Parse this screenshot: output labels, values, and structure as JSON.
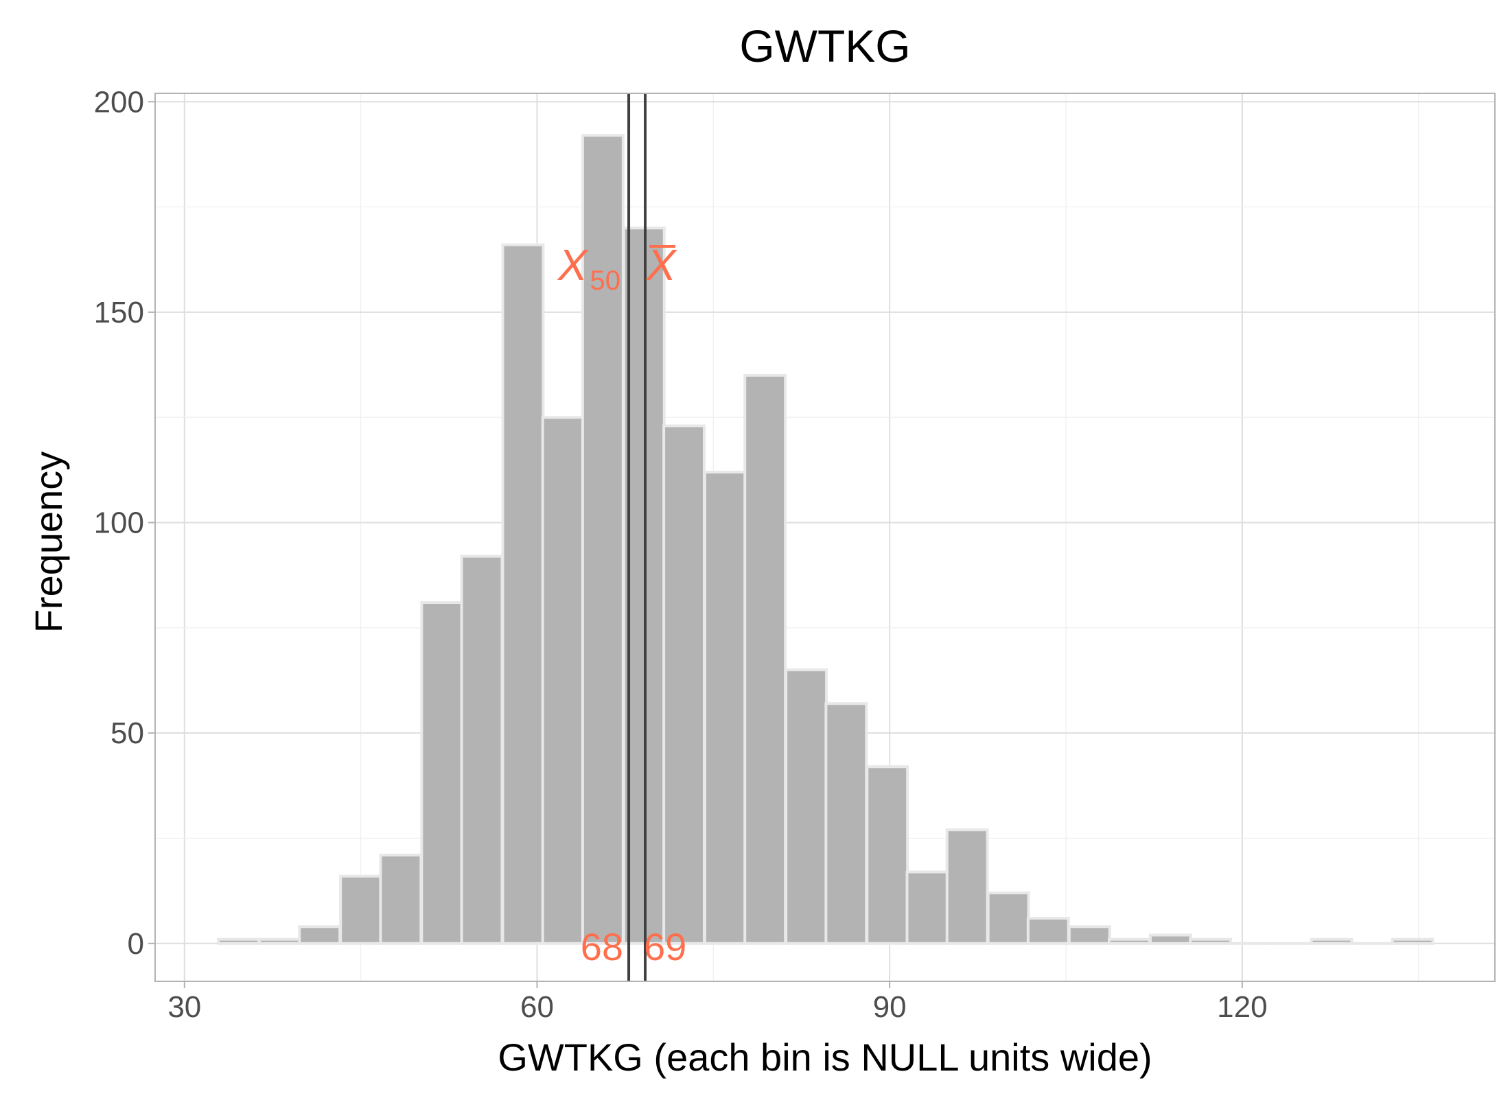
{
  "chart_data": {
    "type": "bar",
    "title": "GWTKG",
    "xlabel": "GWTKG (each bin is NULL units wide)",
    "ylabel": "Frequency",
    "xlim": [
      27.5,
      141.5
    ],
    "ylim": [
      -9,
      202
    ],
    "x_ticks": [
      30,
      60,
      90,
      120
    ],
    "y_ticks": [
      0,
      50,
      100,
      150,
      200
    ],
    "bin_width": 3.44,
    "bins": [
      {
        "x": 34.6,
        "count": 1
      },
      {
        "x": 38.1,
        "count": 1
      },
      {
        "x": 41.5,
        "count": 4
      },
      {
        "x": 45.0,
        "count": 16
      },
      {
        "x": 48.4,
        "count": 21
      },
      {
        "x": 51.9,
        "count": 81
      },
      {
        "x": 55.3,
        "count": 92
      },
      {
        "x": 58.8,
        "count": 166
      },
      {
        "x": 62.2,
        "count": 125
      },
      {
        "x": 65.6,
        "count": 192
      },
      {
        "x": 69.1,
        "count": 170
      },
      {
        "x": 72.5,
        "count": 123
      },
      {
        "x": 76.0,
        "count": 112
      },
      {
        "x": 79.4,
        "count": 135
      },
      {
        "x": 82.9,
        "count": 65
      },
      {
        "x": 86.3,
        "count": 57
      },
      {
        "x": 89.8,
        "count": 42
      },
      {
        "x": 93.2,
        "count": 17
      },
      {
        "x": 96.6,
        "count": 27
      },
      {
        "x": 100.1,
        "count": 12
      },
      {
        "x": 103.5,
        "count": 6
      },
      {
        "x": 107.0,
        "count": 4
      },
      {
        "x": 110.4,
        "count": 1
      },
      {
        "x": 113.9,
        "count": 2
      },
      {
        "x": 117.3,
        "count": 1
      },
      {
        "x": 120.8,
        "count": 0
      },
      {
        "x": 124.2,
        "count": 0
      },
      {
        "x": 127.6,
        "count": 1
      },
      {
        "x": 131.1,
        "count": 0
      },
      {
        "x": 134.5,
        "count": 1
      }
    ],
    "reference_lines": [
      {
        "x": 67.8,
        "symbol": "X",
        "subscript": "50",
        "value_label": "68"
      },
      {
        "x": 69.2,
        "symbol": "X",
        "overline": true,
        "value_label": "69"
      }
    ],
    "bar_fill": "#b3b3b3",
    "bar_outline": "#e8e8e8",
    "annotation_color": "#ff6f4d",
    "line_color": "#404040",
    "grid": true
  }
}
